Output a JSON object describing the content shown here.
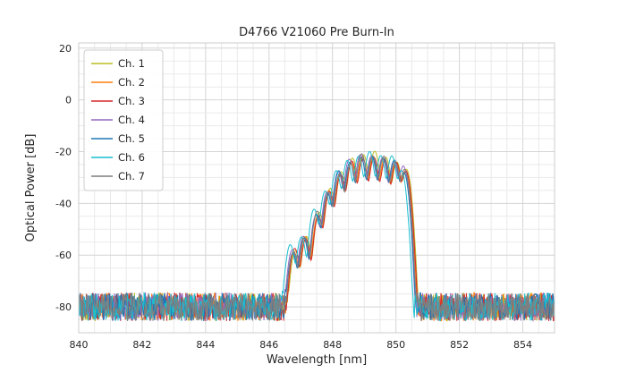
{
  "figure": {
    "background": "#ffffff"
  },
  "chart_data": {
    "type": "line",
    "title": "D4766 V21060 Pre Burn-In",
    "xlabel": "Wavelength [nm]",
    "ylabel": "Optical Power [dB]",
    "xlim": [
      840,
      855
    ],
    "ylim": [
      -90,
      22
    ],
    "xticks": [
      840,
      842,
      844,
      846,
      848,
      850,
      852,
      854
    ],
    "yticks": [
      20,
      0,
      -20,
      -40,
      -60,
      -80
    ],
    "x_minor_step_nm": 0.5,
    "y_minor_step_db": 5,
    "grid": true,
    "legend_position": "upper left",
    "noise_floor_db": -80,
    "noise_peak_to_peak_db": 11,
    "mode_sigma_nm": 0.075,
    "sample_step_nm": 0.02,
    "envelope_modes": [
      {
        "wavelength_nm": 846.75,
        "peak_db": -58
      },
      {
        "wavelength_nm": 847.1,
        "peak_db": -54
      },
      {
        "wavelength_nm": 847.5,
        "peak_db": -44
      },
      {
        "wavelength_nm": 847.85,
        "peak_db": -35
      },
      {
        "wavelength_nm": 848.2,
        "peak_db": -28
      },
      {
        "wavelength_nm": 848.55,
        "peak_db": -23.5
      },
      {
        "wavelength_nm": 848.9,
        "peak_db": -22
      },
      {
        "wavelength_nm": 849.25,
        "peak_db": -21.5
      },
      {
        "wavelength_nm": 849.6,
        "peak_db": -22
      },
      {
        "wavelength_nm": 849.95,
        "peak_db": -23.5
      },
      {
        "wavelength_nm": 850.25,
        "peak_db": -27
      }
    ],
    "series": [
      {
        "name": "Ch. 1",
        "color": "#bcbd22",
        "dx_nm": 0.08,
        "dy_db": 0.5,
        "seed": 101
      },
      {
        "name": "Ch. 2",
        "color": "#ff7f0e",
        "dx_nm": 0.04,
        "dy_db": 0.0,
        "seed": 202
      },
      {
        "name": "Ch. 3",
        "color": "#d62728",
        "dx_nm": 0.06,
        "dy_db": -0.5,
        "seed": 303
      },
      {
        "name": "Ch. 4",
        "color": "#9467bd",
        "dx_nm": -0.02,
        "dy_db": 0.3,
        "seed": 404
      },
      {
        "name": "Ch. 5",
        "color": "#1f77b4",
        "dx_nm": 0.0,
        "dy_db": -0.3,
        "seed": 505
      },
      {
        "name": "Ch. 6",
        "color": "#17becf",
        "dx_nm": -0.08,
        "dy_db": 0.8,
        "seed": 606
      },
      {
        "name": "Ch. 7",
        "color": "#7f7f7f",
        "dx_nm": 0.02,
        "dy_db": 0.0,
        "seed": 707
      }
    ],
    "style": {
      "grid_major_color": "#d4d4d4",
      "grid_minor_color": "#eaeaea",
      "frame_color": "#cccccc",
      "text_color": "#262626",
      "legend_border_color": "#cccccc",
      "legend_background": "#ffffff"
    }
  }
}
